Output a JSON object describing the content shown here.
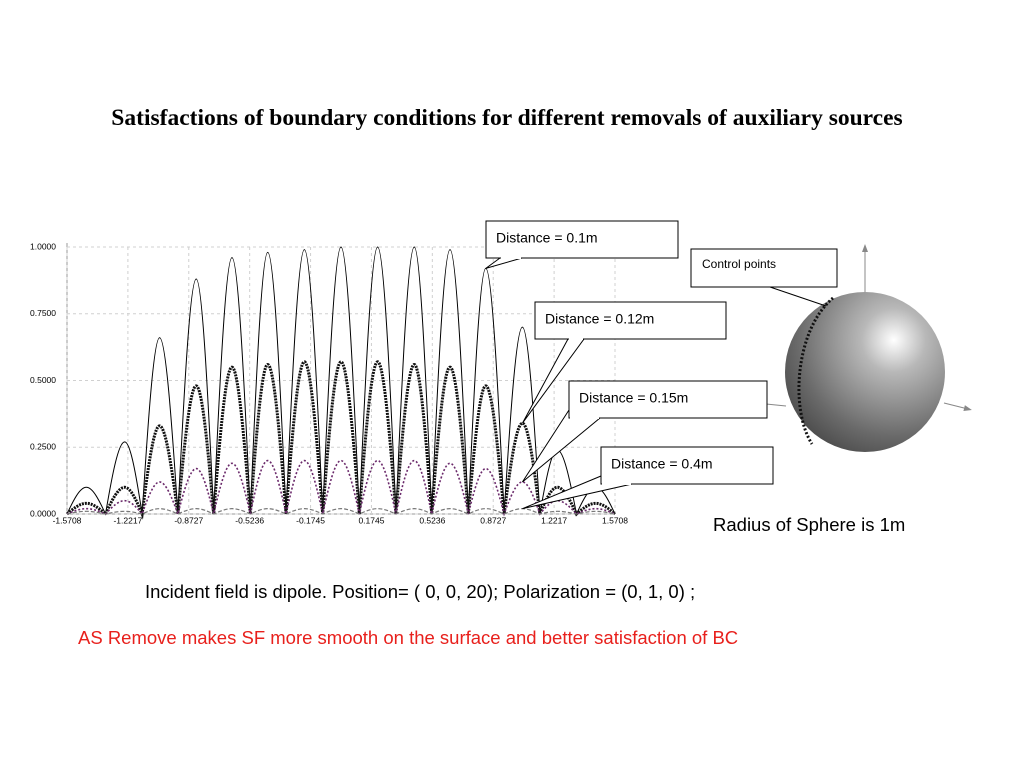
{
  "chart_data": {
    "type": "line",
    "title": "Satisfactions of boundary conditions  for different removals of auxiliary sources",
    "x": [
      -1.5708,
      -1.46,
      -1.35,
      -1.24,
      -1.14,
      -1.04,
      -0.935,
      -0.83,
      -0.73,
      -0.625,
      -0.52,
      -0.42,
      -0.315,
      -0.21,
      -0.105,
      0,
      0.105,
      0.21,
      0.315,
      0.42,
      0.52,
      0.625,
      0.73,
      0.83,
      0.935,
      1.04,
      1.14,
      1.24,
      1.35,
      1.46,
      1.5708
    ],
    "series": [
      {
        "name": "Distance = 0.1m",
        "color": "#000000",
        "values": [
          0,
          0.1,
          0,
          0.27,
          0,
          0.66,
          0,
          0.88,
          0,
          0.96,
          0,
          0.98,
          0,
          0.99,
          0,
          1.0,
          0,
          1.0,
          0,
          1.0,
          0,
          0.99,
          0,
          0.92,
          0,
          0.7,
          0,
          0.24,
          0,
          0.1,
          0
        ]
      },
      {
        "name": "Distance = 0.12m",
        "color": "#111111",
        "values": [
          0,
          0.04,
          0,
          0.1,
          0,
          0.33,
          0,
          0.48,
          0,
          0.55,
          0,
          0.56,
          0,
          0.57,
          0,
          0.57,
          0,
          0.57,
          0,
          0.56,
          0,
          0.55,
          0,
          0.48,
          0,
          0.34,
          0,
          0.1,
          0,
          0.04,
          0
        ]
      },
      {
        "name": "Distance = 0.15m",
        "color": "#6b2a6b",
        "values": [
          0,
          0.02,
          0,
          0.05,
          0,
          0.12,
          0,
          0.17,
          0,
          0.19,
          0,
          0.2,
          0,
          0.2,
          0,
          0.2,
          0,
          0.2,
          0,
          0.2,
          0,
          0.19,
          0,
          0.17,
          0,
          0.12,
          0,
          0.05,
          0,
          0.02,
          0
        ]
      },
      {
        "name": "Distance = 0.4m",
        "color": "#777777",
        "values": [
          0,
          0.01,
          0,
          0.01,
          0,
          0.02,
          0,
          0.02,
          0,
          0.02,
          0,
          0.02,
          0,
          0.02,
          0,
          0.02,
          0,
          0.02,
          0,
          0.02,
          0,
          0.02,
          0,
          0.02,
          0,
          0.02,
          0,
          0.01,
          0,
          0.01,
          0
        ]
      }
    ],
    "xlim": [
      -1.5708,
      1.5708
    ],
    "xticks": [
      -1.5708,
      -1.2217,
      -0.8727,
      -0.5236,
      -0.1745,
      0.1745,
      0.5236,
      0.8727,
      1.2217,
      1.5708
    ],
    "ylim": [
      0,
      1
    ],
    "yticks": [
      {
        "value": 0,
        "label": "0.0000"
      },
      {
        "value": 0.25,
        "label": "0.2500"
      },
      {
        "value": 0.5,
        "label": "0.5000"
      },
      {
        "value": 0.75,
        "label": "0.7500"
      },
      {
        "value": 1,
        "label": "1.0000"
      }
    ],
    "grid": true
  },
  "sphere": {
    "label": "Control points",
    "caption": "Radius of Sphere is 1m"
  },
  "notes": [
    {
      "text": "Incident field is dipole. Position= ( 0, 0, 20); Polarization = (0, 1, 0) ;",
      "color": "#000000"
    },
    {
      "text": "AS Remove makes SF more smooth on the surface and  better satisfaction of BC",
      "color": "#e8201c"
    }
  ]
}
